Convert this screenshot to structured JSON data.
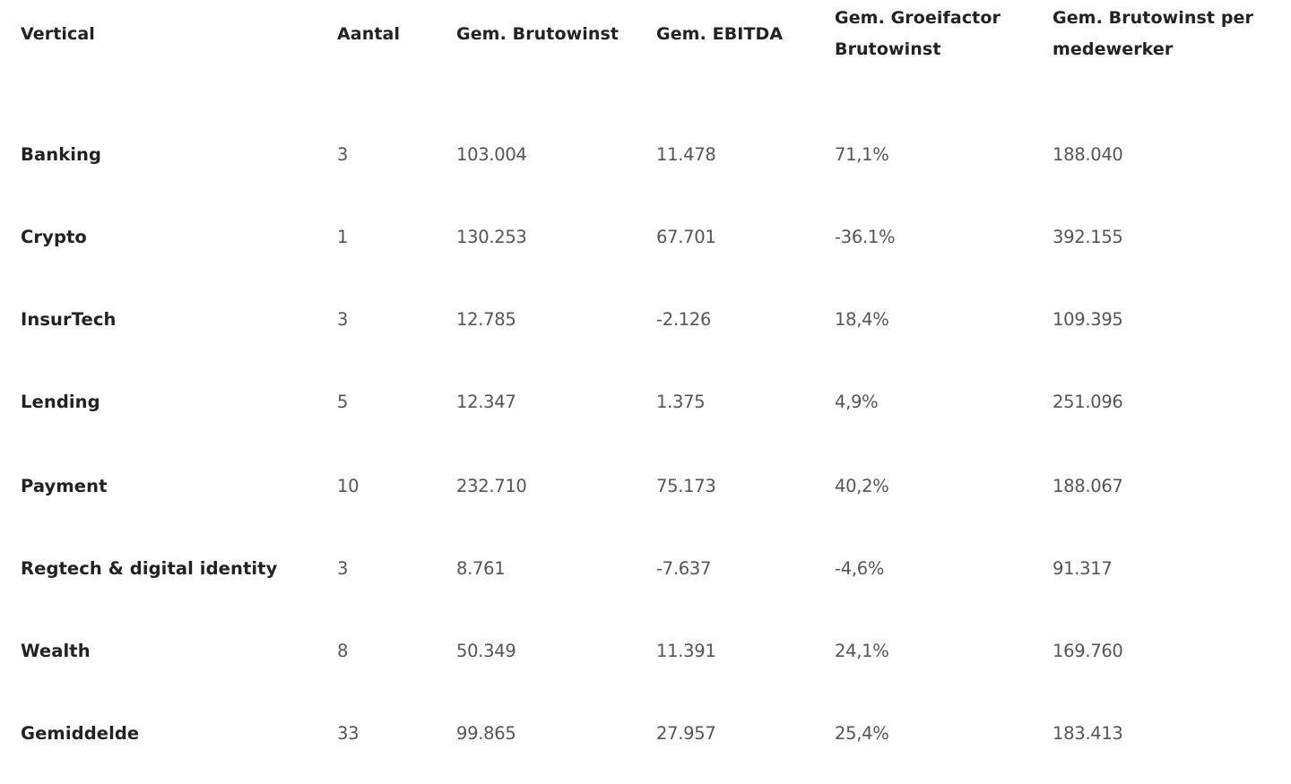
{
  "headers": [
    "Vertical",
    "Aantal",
    "Gem. Brutowinst",
    "Gem. EBITDA",
    "Gem. Groeifactor Brutowinst",
    "Gem. Brutowinst per medewerker"
  ],
  "header_lines": {
    "h4": [
      "Gem. Groeifactor",
      "Brutowinst"
    ],
    "h5": [
      "Gem. Brutowinst per",
      "medewerker"
    ]
  },
  "rows": [
    [
      "Banking",
      "3",
      "103.004",
      "11.478",
      "71,1%",
      "188.040"
    ],
    [
      "Crypto",
      "1",
      "130.253",
      "67.701",
      "-36.1%",
      "392.155"
    ],
    [
      "InsurTech",
      "3",
      "12.785",
      "-2.126",
      "18,4%",
      "109.395"
    ],
    [
      "Lending",
      "5",
      "12.347",
      "1.375",
      "4,9%",
      "251.096"
    ],
    [
      "Payment",
      "10",
      "232.710",
      "75.173",
      "40,2%",
      "188.067"
    ],
    [
      "Regtech & digital identity",
      "3",
      "8.761",
      "-7.637",
      "-4,6%",
      "91.317"
    ],
    [
      "Wealth",
      "8",
      "50.349",
      "11.391",
      "24,1%",
      "169.760"
    ],
    [
      "Gemiddelde",
      "33",
      "99.865",
      "27.957",
      "25,4%",
      "183.413"
    ]
  ]
}
